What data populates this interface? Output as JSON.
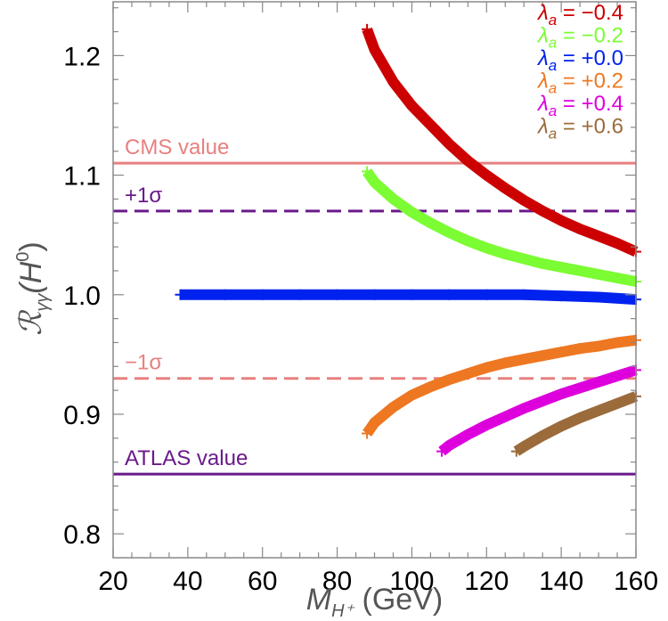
{
  "chart_data": {
    "type": "scatter",
    "title": "",
    "xlabel": {
      "main": "M",
      "sub": "H⁺",
      "unit": "(GeV)"
    },
    "ylabel": {
      "main": "ℛ",
      "sub": "γγ",
      "arg_open": "(H",
      "arg_sup": "0",
      "arg_close": ")"
    },
    "xlim": [
      20,
      160
    ],
    "ylim": [
      0.78,
      1.245
    ],
    "x_ticks": [
      20,
      40,
      60,
      80,
      100,
      120,
      140,
      160
    ],
    "x_tick_labels": [
      "20",
      "40",
      "60",
      "80",
      "100",
      "120",
      "140",
      "160"
    ],
    "y_ticks": [
      0.8,
      0.9,
      1.0,
      1.1,
      1.2
    ],
    "y_tick_labels": [
      "0.8",
      "0.9",
      "1.0",
      "1.1",
      "1.2"
    ],
    "reference_lines": [
      {
        "label": "CMS value",
        "y": 1.11,
        "color": "#e88080",
        "style": "solid"
      },
      {
        "label": "+1σ",
        "y": 1.07,
        "color": "#6a1a8a",
        "style": "dashed"
      },
      {
        "label": "−1σ",
        "y": 0.93,
        "color": "#e88080",
        "style": "dashed"
      },
      {
        "label": "ATLAS value",
        "y": 0.85,
        "color": "#6a1a8a",
        "style": "solid"
      }
    ],
    "series": [
      {
        "name": "−0.4",
        "color": "#cc0000",
        "x": [
          88,
          90,
          95,
          100,
          105,
          110,
          115,
          120,
          125,
          130,
          135,
          140,
          145,
          150,
          155,
          160
        ],
        "y": [
          1.222,
          1.205,
          1.178,
          1.158,
          1.142,
          1.126,
          1.112,
          1.1,
          1.089,
          1.079,
          1.07,
          1.062,
          1.055,
          1.049,
          1.043,
          1.036
        ]
      },
      {
        "name": "−0.2",
        "color": "#7cfc32",
        "x": [
          88,
          90,
          95,
          100,
          105,
          110,
          115,
          120,
          125,
          130,
          135,
          140,
          145,
          150,
          155,
          160
        ],
        "y": [
          1.103,
          1.094,
          1.08,
          1.069,
          1.06,
          1.052,
          1.045,
          1.039,
          1.034,
          1.03,
          1.026,
          1.023,
          1.02,
          1.017,
          1.014,
          1.011
        ]
      },
      {
        "name": "+0.0",
        "color": "#0022ee",
        "x": [
          38,
          50,
          60,
          70,
          80,
          90,
          100,
          110,
          120,
          130,
          140,
          150,
          160
        ],
        "y": [
          1.0,
          1.0,
          1.0,
          1.0,
          1.0,
          1.0,
          1.0,
          1.0,
          1.0,
          1.0,
          0.999,
          0.998,
          0.996
        ]
      },
      {
        "name": "+0.2",
        "color": "#ee7722",
        "x": [
          88,
          90,
          95,
          100,
          105,
          110,
          115,
          120,
          125,
          130,
          135,
          140,
          145,
          150,
          155,
          160
        ],
        "y": [
          0.884,
          0.893,
          0.906,
          0.916,
          0.923,
          0.929,
          0.934,
          0.939,
          0.943,
          0.946,
          0.949,
          0.952,
          0.955,
          0.957,
          0.96,
          0.962
        ]
      },
      {
        "name": "+0.4",
        "color": "#dd00dd",
        "x": [
          108,
          110,
          115,
          120,
          125,
          130,
          135,
          140,
          145,
          150,
          155,
          160
        ],
        "y": [
          0.869,
          0.874,
          0.883,
          0.891,
          0.898,
          0.905,
          0.911,
          0.917,
          0.922,
          0.927,
          0.932,
          0.937
        ]
      },
      {
        "name": "+0.6",
        "color": "#9b6b3b",
        "x": [
          128,
          130,
          135,
          140,
          145,
          150,
          155,
          160
        ],
        "y": [
          0.869,
          0.873,
          0.882,
          0.89,
          0.897,
          0.903,
          0.909,
          0.915
        ]
      }
    ],
    "legend_prefix": {
      "symbol": "λ",
      "sub": "a",
      "eq": " = "
    },
    "legend_position": "top-right",
    "grid": false
  }
}
